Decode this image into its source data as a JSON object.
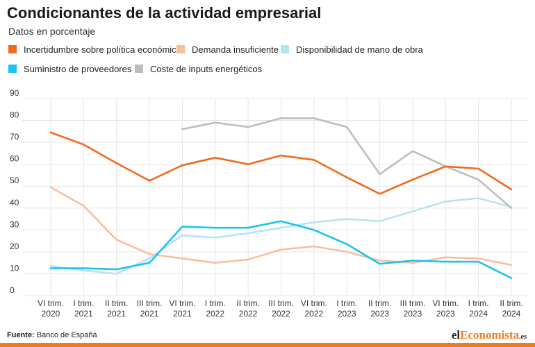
{
  "title": "Condicionantes de la actividad empresarial",
  "subtitle": "Datos en porcentaje",
  "footer": {
    "source_label": "Fuente:",
    "source_value": "Banco de España"
  },
  "brand": {
    "prefix": "el",
    "highlight": "Economista",
    "suffix": ".es"
  },
  "chart_data": {
    "type": "line",
    "x": [
      [
        "VI trim.",
        "2020"
      ],
      [
        "I trim.",
        "2021"
      ],
      [
        "II trim.",
        "2021"
      ],
      [
        "III trim.",
        "2021"
      ],
      [
        "VI trim.",
        "2021"
      ],
      [
        "I trim.",
        "2022"
      ],
      [
        "II trim.",
        "2022"
      ],
      [
        "III trim.",
        "2022"
      ],
      [
        "VI trim.",
        "2022"
      ],
      [
        "I trim.",
        "2023"
      ],
      [
        "II trim.",
        "2023"
      ],
      [
        "III trim.",
        "2023"
      ],
      [
        "VI trim.",
        "2023"
      ],
      [
        "I trim.",
        "2024"
      ],
      [
        "II trim.",
        "2024"
      ]
    ],
    "ylim": [
      0,
      90
    ],
    "yticks": [
      0,
      10,
      20,
      30,
      40,
      50,
      60,
      70,
      80,
      90
    ],
    "series": [
      {
        "name": "Incertidumbre sobre política económica",
        "color": "#f06a1d",
        "values": [
          74.5,
          69,
          60.5,
          52.5,
          59.5,
          63,
          60,
          64,
          62,
          54,
          46.5,
          53,
          59,
          58,
          48.5
        ]
      },
      {
        "name": "Demanda insuficiente",
        "color": "#f8bf9e",
        "values": [
          49.5,
          41,
          25.5,
          19,
          17,
          15,
          16.5,
          21,
          22.5,
          20,
          16,
          15,
          17.5,
          17,
          14
        ]
      },
      {
        "name": "Disponibilidad de mano de obra",
        "color": "#b9e2f4",
        "values": [
          13.5,
          11.5,
          10,
          17,
          27.5,
          26.5,
          28.5,
          31,
          33.5,
          35,
          34,
          38.5,
          43,
          44.5,
          40.5
        ]
      },
      {
        "name": "Suministro de proveedores",
        "color": "#1bc4ee",
        "values": [
          12.5,
          12.5,
          12,
          15,
          31.5,
          31,
          31,
          34,
          30,
          23.5,
          14.5,
          16,
          15.5,
          15.5,
          8
        ]
      },
      {
        "name": "Coste de inputs energéticos",
        "color": "#bdbdbd",
        "values": [
          null,
          null,
          null,
          null,
          76,
          79,
          77,
          81,
          81,
          77,
          55.5,
          66,
          59,
          53,
          40
        ]
      }
    ],
    "grid": true,
    "legend_position": "top-left"
  }
}
